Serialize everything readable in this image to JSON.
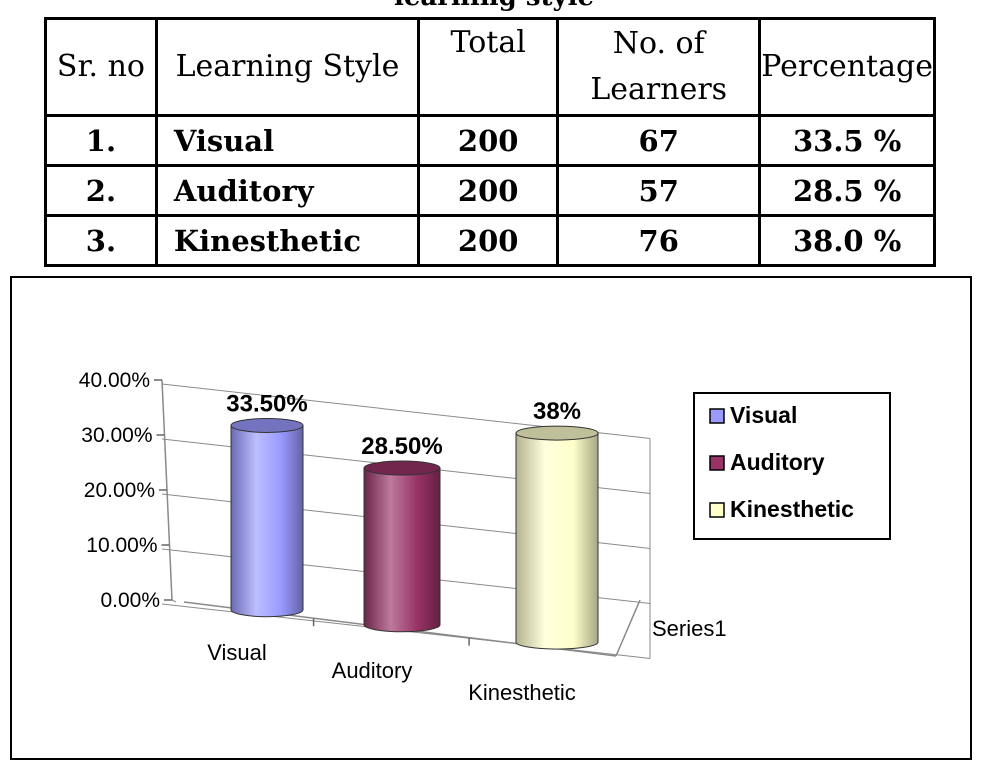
{
  "table": {
    "caption": "learning style",
    "headers": {
      "sr_no": "Sr. no",
      "learning_style": "Learning Style",
      "total": "Total",
      "learners": "No. of Learners",
      "percentage": "Percentage"
    },
    "rows": [
      {
        "sr": "1.",
        "style": "Visual",
        "total": "200",
        "learners": "67",
        "percentage": "33.5 %"
      },
      {
        "sr": "2.",
        "style": "Auditory",
        "total": "200",
        "learners": "57",
        "percentage": "28.5 %"
      },
      {
        "sr": "3.",
        "style": "Kinesthetic",
        "total": "200",
        "learners": "76",
        "percentage": "38.0 %"
      }
    ]
  },
  "chart_data": {
    "type": "bar",
    "variant": "3d-cylinder",
    "categories": [
      "Visual",
      "Auditory",
      "Kinesthetic"
    ],
    "series": [
      {
        "name": "Series1",
        "values": [
          0.335,
          0.285,
          0.38
        ],
        "labels": [
          "33.50%",
          "28.50%",
          "38%"
        ]
      }
    ],
    "y_ticks": [
      "0.00%",
      "10.00%",
      "20.00%",
      "30.00%",
      "40.00%"
    ],
    "ylim": [
      0,
      0.4
    ],
    "grid": true,
    "legend": {
      "position": "right",
      "entries": [
        "Visual",
        "Auditory",
        "Kinesthetic"
      ]
    },
    "colors": [
      "#9999ff",
      "#993366",
      "#ffffcc"
    ],
    "depth_axis_label": "Series1"
  }
}
